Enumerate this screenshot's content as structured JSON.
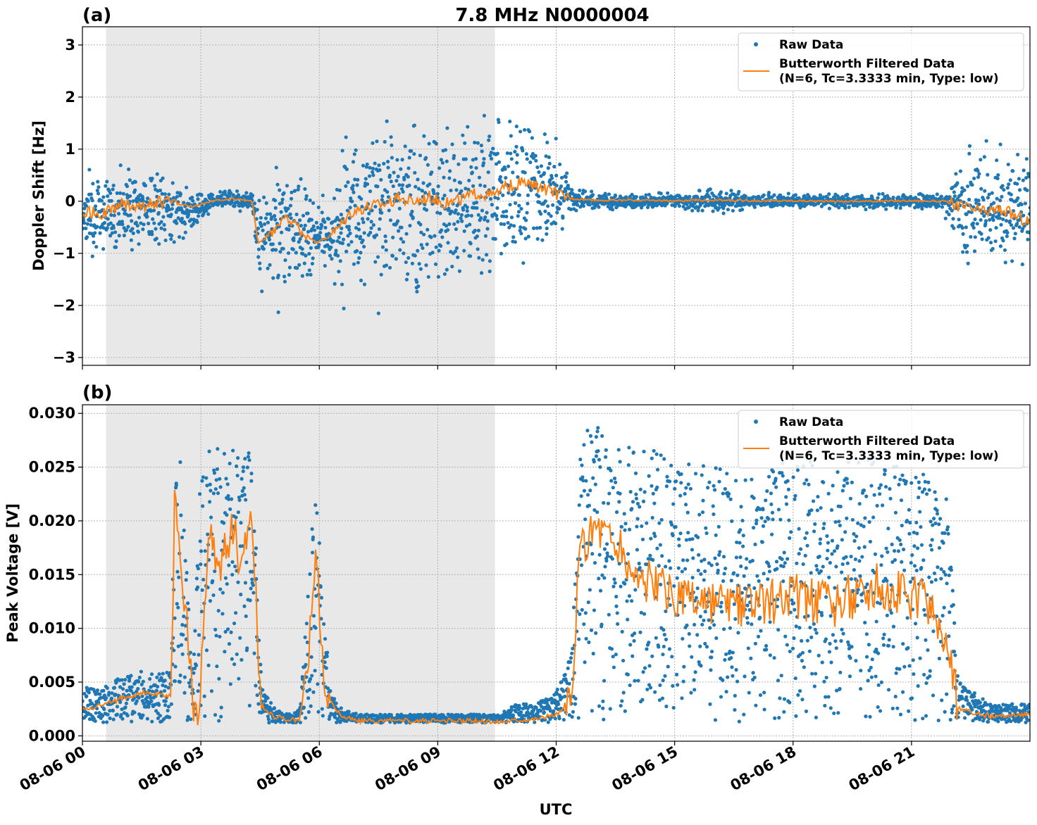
{
  "figure": {
    "title": "7.8 MHz N0000004",
    "xlabel": "UTC",
    "x_range": [
      "2024-08-06T00:00",
      "2024-08-07T00:00"
    ],
    "x_tick_labels": [
      "08-06 00",
      "08-06 03",
      "08-06 06",
      "08-06 09",
      "08-06 12",
      "08-06 15",
      "08-06 18",
      "08-06 21"
    ],
    "x_ticks_hours": [
      0,
      3,
      6,
      9,
      12,
      15,
      18,
      21
    ],
    "shaded_interval_hours": [
      0.6,
      10.45
    ],
    "colors": {
      "raw": "#1f77b4",
      "filtered": "#ff7f0e",
      "shade": "#e8e8e8",
      "grid": "#b0b0b0"
    },
    "legend": {
      "raw_label": "Raw Data",
      "filtered_label_line1": "Butterworth Filtered Data",
      "filtered_label_line2": "(N=6, Tc=3.3333 min, Type: low)",
      "placement": "top-right"
    }
  },
  "chart_data": [
    {
      "type": "scatter",
      "panel_label": "(a)",
      "ylabel": "Doppler Shift [Hz]",
      "ylim": [
        -3.15,
        3.35
      ],
      "y_ticks": [
        3,
        2,
        1,
        0,
        -1,
        -2,
        -3
      ],
      "y_tick_labels": [
        "3",
        "2",
        "1",
        "0",
        "−1",
        "−2",
        "−3"
      ],
      "grid": true,
      "series": [
        {
          "name": "Butterworth Filtered Data",
          "x_hours": [
            0,
            0.5,
            1,
            1.5,
            2,
            2.4,
            2.8,
            3.3,
            3.8,
            4.3,
            4.45,
            4.7,
            5,
            5.3,
            5.6,
            5.9,
            6.2,
            6.5,
            6.8,
            7.2,
            7.6,
            8,
            8.4,
            8.8,
            9.2,
            9.6,
            10,
            10.4,
            10.8,
            11.2,
            11.6,
            12,
            12.4,
            13,
            14,
            15,
            16,
            17,
            18,
            19,
            20,
            21,
            21.8,
            22.3,
            22.8,
            23.3,
            23.7,
            24
          ],
          "y": [
            -0.2,
            -0.25,
            -0.05,
            -0.1,
            0,
            -0.05,
            -0.1,
            0,
            0.05,
            0.0,
            -0.8,
            -0.7,
            -0.4,
            -0.35,
            -0.6,
            -0.8,
            -0.7,
            -0.5,
            -0.2,
            -0.1,
            -0.05,
            0.05,
            0.0,
            0.1,
            -0.05,
            0.05,
            0.15,
            0.1,
            0.3,
            0.35,
            0.25,
            0.15,
            0.05,
            0.02,
            0.02,
            0.01,
            0.02,
            0.01,
            0.01,
            0.0,
            0.0,
            0.01,
            0.0,
            -0.1,
            -0.2,
            -0.15,
            -0.3,
            -0.4
          ]
        },
        {
          "name": "Raw Data",
          "x_hours": [
            0,
            0.5,
            1,
            1.5,
            2,
            2.4,
            2.8,
            3.3,
            3.8,
            4.3,
            4.45,
            4.7,
            5,
            5.3,
            5.6,
            5.9,
            6.2,
            6.5,
            6.8,
            7.2,
            7.6,
            8,
            8.4,
            8.8,
            9.2,
            9.6,
            10,
            10.4,
            10.8,
            11.2,
            11.6,
            12,
            12.4,
            13,
            14,
            15,
            16,
            17,
            18,
            19,
            20,
            21,
            21.8,
            22.3,
            22.8,
            23.3,
            23.7,
            24
          ],
          "y_max": [
            0.8,
            0.6,
            0.7,
            0.7,
            0.6,
            0.4,
            0.2,
            0.2,
            0.25,
            0.2,
            0.0,
            0.5,
            1.1,
            0.8,
            0.5,
            0.1,
            0.0,
            0.8,
            1.5,
            1.6,
            1.7,
            1.6,
            1.8,
            1.7,
            1.6,
            1.6,
            1.8,
            1.7,
            1.9,
            2.0,
            1.6,
            1.2,
            0.3,
            0.15,
            0.15,
            0.15,
            0.25,
            0.15,
            0.15,
            0.15,
            0.15,
            0.15,
            0.15,
            1.0,
            1.0,
            1.0,
            1.1,
            1.0
          ],
          "y_min": [
            -1.1,
            -1.0,
            -0.9,
            -1.0,
            -0.9,
            -0.8,
            -0.5,
            -0.2,
            -0.15,
            -0.2,
            -1.5,
            -1.9,
            -2.0,
            -1.7,
            -1.6,
            -1.5,
            -1.3,
            -1.9,
            -1.8,
            -1.9,
            -1.8,
            -1.9,
            -1.8,
            -1.7,
            -1.8,
            -1.7,
            -1.6,
            -1.5,
            -1.4,
            -1.3,
            -1.0,
            -0.8,
            -0.2,
            -0.15,
            -0.15,
            -0.15,
            -0.25,
            -0.15,
            -0.15,
            -0.15,
            -0.15,
            -0.15,
            -0.15,
            -1.2,
            -1.3,
            -1.3,
            -1.4,
            -1.4
          ]
        }
      ]
    },
    {
      "type": "scatter",
      "panel_label": "(b)",
      "ylabel": "Peak Voltage [V]",
      "ylim": [
        -0.0005,
        0.0308
      ],
      "y_ticks": [
        0.03,
        0.025,
        0.02,
        0.015,
        0.01,
        0.005,
        0.0
      ],
      "y_tick_labels": [
        "0.030",
        "0.025",
        "0.020",
        "0.015",
        "0.010",
        "0.005",
        "0.000"
      ],
      "grid": true,
      "series": [
        {
          "name": "Butterworth Filtered Data",
          "x_hours": [
            0,
            0.5,
            1,
            1.5,
            2,
            2.25,
            2.35,
            2.5,
            2.8,
            2.95,
            3.2,
            3.5,
            3.8,
            4.0,
            4.3,
            4.5,
            4.6,
            4.9,
            5.2,
            5.5,
            5.7,
            5.9,
            6.1,
            6.3,
            6.6,
            7,
            8,
            9,
            10,
            10.5,
            11.0,
            11.5,
            12.0,
            12.4,
            12.6,
            13.0,
            13.5,
            14,
            15,
            16,
            17,
            18,
            19,
            20,
            21,
            21.5,
            21.9,
            22.2,
            23,
            24
          ],
          "y": [
            0.0025,
            0.0028,
            0.0035,
            0.004,
            0.0038,
            0.0037,
            0.024,
            0.016,
            0.003,
            0.003,
            0.018,
            0.016,
            0.02,
            0.016,
            0.021,
            0.004,
            0.0025,
            0.0018,
            0.0015,
            0.0015,
            0.006,
            0.018,
            0.005,
            0.003,
            0.0018,
            0.0014,
            0.0014,
            0.0014,
            0.0014,
            0.0013,
            0.0015,
            0.0016,
            0.002,
            0.003,
            0.017,
            0.02,
            0.018,
            0.015,
            0.013,
            0.012,
            0.012,
            0.013,
            0.012,
            0.014,
            0.013,
            0.012,
            0.008,
            0.0025,
            0.0018,
            0.002
          ]
        },
        {
          "name": "Raw Data",
          "x_hours": [
            0,
            0.5,
            1,
            1.5,
            2,
            2.25,
            2.35,
            2.5,
            2.8,
            2.95,
            3.2,
            3.5,
            3.8,
            4.0,
            4.3,
            4.5,
            4.6,
            4.9,
            5.2,
            5.5,
            5.7,
            5.9,
            6.1,
            6.3,
            6.6,
            7,
            8,
            9,
            10,
            10.5,
            11.0,
            11.5,
            12.0,
            12.4,
            12.6,
            13.0,
            13.5,
            14,
            15,
            16,
            17,
            18,
            19,
            20,
            21,
            21.5,
            21.9,
            22.2,
            23,
            24
          ],
          "y_max": [
            0.0045,
            0.0045,
            0.0055,
            0.006,
            0.0058,
            0.006,
            0.028,
            0.026,
            0.0045,
            0.024,
            0.027,
            0.027,
            0.028,
            0.026,
            0.027,
            0.008,
            0.004,
            0.0025,
            0.002,
            0.0025,
            0.012,
            0.025,
            0.012,
            0.004,
            0.0025,
            0.002,
            0.002,
            0.002,
            0.002,
            0.002,
            0.003,
            0.003,
            0.004,
            0.008,
            0.028,
            0.029,
            0.027,
            0.027,
            0.026,
            0.025,
            0.024,
            0.026,
            0.025,
            0.027,
            0.025,
            0.024,
            0.022,
            0.005,
            0.003,
            0.003
          ]
        }
      ]
    }
  ]
}
